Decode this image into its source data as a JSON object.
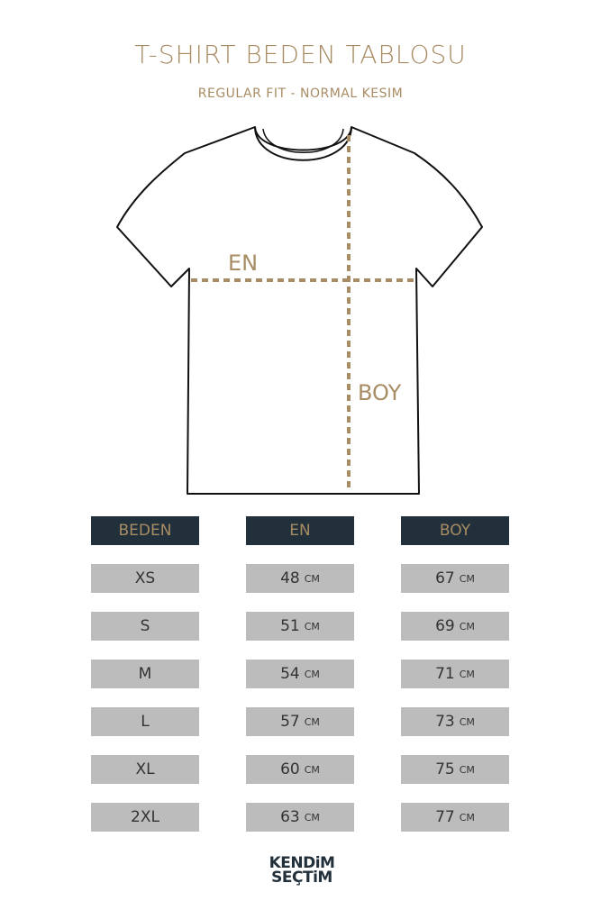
{
  "title": "T-SHIRT BEDEN TABLOSU",
  "subtitle": "REGULAR FIT - NORMAL KESIM",
  "diagram": {
    "width_label": "EN",
    "length_label": "BOY",
    "accent_color": "#a88c64"
  },
  "table": {
    "headers": [
      "BEDEN",
      "EN",
      "BOY"
    ],
    "unit": "CM",
    "rows": [
      {
        "size": "XS",
        "en": "48",
        "boy": "67"
      },
      {
        "size": "S",
        "en": "51",
        "boy": "69"
      },
      {
        "size": "M",
        "en": "54",
        "boy": "71"
      },
      {
        "size": "L",
        "en": "57",
        "boy": "73"
      },
      {
        "size": "XL",
        "en": "60",
        "boy": "75"
      },
      {
        "size": "2XL",
        "en": "63",
        "boy": "77"
      }
    ]
  },
  "logo": {
    "line1": "KENDiM",
    "line2": "SEÇTiM"
  }
}
